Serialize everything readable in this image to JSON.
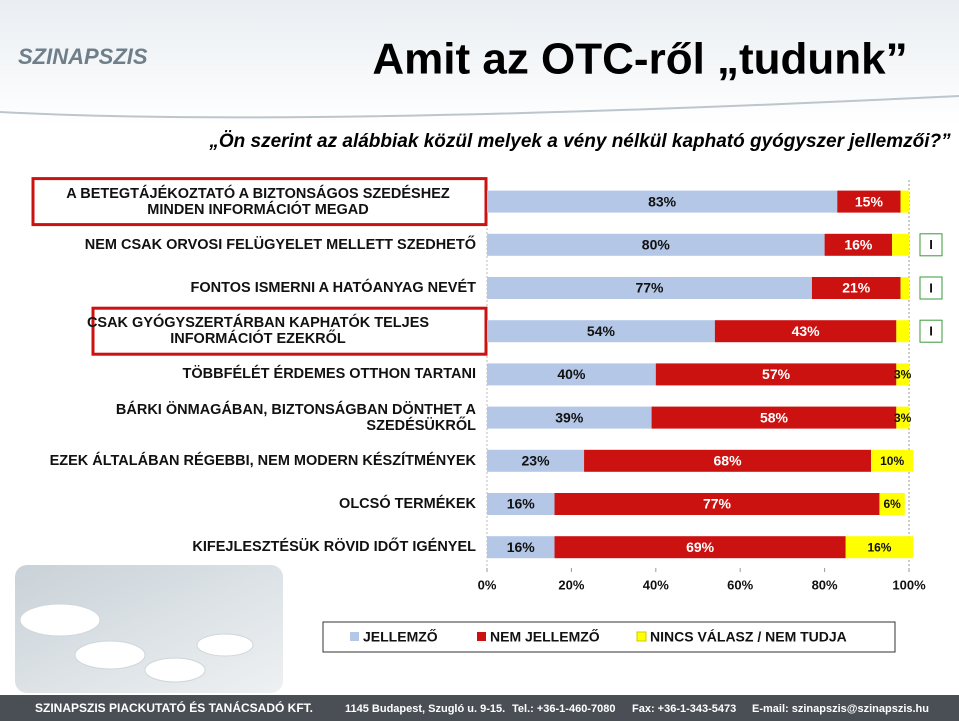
{
  "logo": "SZINAPSZIS",
  "footer": [
    "SZINAPSZIS PIACKUTATÓ ÉS TANÁCSADÓ KFT.",
    "1145 Budapest, Szugló u. 9-15.",
    "Tel.: +36-1-460-7080",
    "Fax: +36-1-343-5473",
    "E-mail: szinapszis@szinapszis.hu"
  ],
  "chart_data": {
    "type": "stacked-bar-horizontal",
    "title": "Amit az OTC-ről „tudunk”",
    "subtitle": "„Ön szerint az alábbiak közül melyek a vény nélkül kapható gyógyszer jellemzői?”",
    "categories": [
      "A BETEGTÁJÉKOZTATÓ A BIZTONSÁGOS SZEDÉSHEZ MINDEN INFORMÁCIÓT MEGAD",
      "NEM CSAK ORVOSI FELÜGYELET MELLETT SZEDHETŐ",
      "FONTOS ISMERNI A HATÓANYAG NEVÉT",
      "CSAK GYÓGYSZERTÁRBAN KAPHATÓK TELJES INFORMÁCIÓT EZEKRŐL",
      "TÖBBFÉLÉT ÉRDEMES OTTHON TARTANI",
      "BÁRKI ÖNMAGÁBAN, BIZTONSÁGBAN DÖNTHET A SZEDÉSÜKRŐL",
      "EZEK ÁLTALÁBAN RÉGEBBI, NEM MODERN KÉSZÍTMÉNYEK",
      "OLCSÓ TERMÉKEK",
      "KIFEJLESZTÉSÜK RÖVID IDŐT IGÉNYEL"
    ],
    "series": [
      {
        "name": "JELLEMZŐ",
        "color": "#b4c7e7",
        "values": [
          83,
          80,
          77,
          54,
          40,
          39,
          23,
          16,
          16
        ],
        "value_labels": [
          "83%",
          "80%",
          "77%",
          "54%",
          "40%",
          "39%",
          "23%",
          "16%",
          "16%"
        ]
      },
      {
        "name": "NEM JELLEMZŐ",
        "color": "#cc1111",
        "values": [
          15,
          16,
          21,
          43,
          57,
          58,
          68,
          77,
          69
        ],
        "value_labels": [
          "15%",
          "16%",
          "21%",
          "43%",
          "57%",
          "58%",
          "68%",
          "77%",
          "69%"
        ]
      },
      {
        "name": "NINCS VÁLASZ / NEM TUDJA",
        "color": "#ffff00",
        "values": [
          2,
          4,
          2,
          3,
          3,
          3,
          10,
          6,
          16
        ],
        "value_labels": [
          null,
          "I",
          "I",
          "I",
          "3%",
          "3%",
          "10%",
          "6%",
          "16%"
        ]
      }
    ],
    "xlim": [
      0,
      100
    ],
    "xticks": [
      {
        "value": 0,
        "label": "0%"
      },
      {
        "value": 20,
        "label": "20%"
      },
      {
        "value": 40,
        "label": "40%"
      },
      {
        "value": 60,
        "label": "60%"
      },
      {
        "value": 80,
        "label": "80%"
      },
      {
        "value": 100,
        "label": "100%"
      }
    ],
    "legend": "bottom"
  }
}
